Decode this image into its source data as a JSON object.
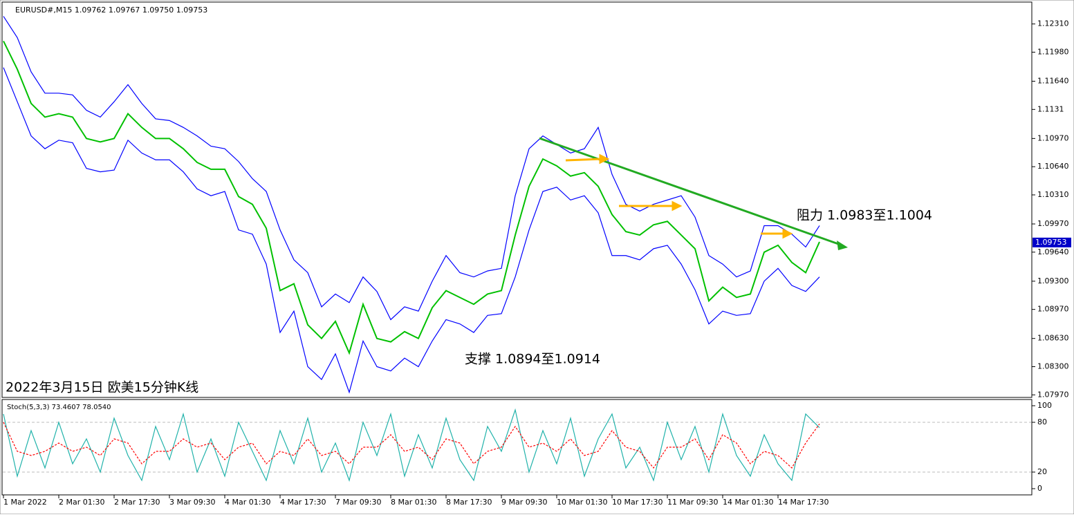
{
  "chart_data": [
    {
      "type": "line",
      "title": "EURUSD#,M15  1.09762 1.09767 1.09750 1.09753",
      "caption": "2022年3月15日 欧美15分钟K线",
      "annotations": [
        "阻力 1.0983至1.1004",
        "支撑 1.0894至1.0914"
      ],
      "last_price": 1.09753,
      "categories": [
        "1 Mar 2022",
        null,
        null,
        null,
        "2 Mar 01:30",
        null,
        null,
        null,
        "2 Mar 17:30",
        null,
        null,
        null,
        "3 Mar 09:30",
        null,
        null,
        null,
        "4 Mar 01:30",
        null,
        null,
        null,
        "4 Mar 17:30",
        null,
        null,
        null,
        "7 Mar 09:30",
        null,
        null,
        null,
        "8 Mar 01:30",
        null,
        null,
        null,
        "8 Mar 17:30",
        null,
        null,
        null,
        "9 Mar 09:30",
        null,
        null,
        null,
        "10 Mar 01:30",
        null,
        null,
        null,
        "10 Mar 17:30",
        null,
        null,
        null,
        "11 Mar 09:30",
        null,
        null,
        null,
        "14 Mar 01:30",
        null,
        null,
        null,
        "14 Mar 17:30",
        null,
        null,
        null
      ],
      "series": [
        {
          "color": "#00c000",
          "values": [
            1.1211,
            1.1178,
            1.1138,
            1.1122,
            1.1126,
            1.1122,
            1.1097,
            1.1093,
            1.1097,
            1.1126,
            1.111,
            1.1097,
            1.1097,
            1.1085,
            1.1069,
            1.1061,
            1.1061,
            1.1029,
            1.102,
            1.0992,
            1.0919,
            1.0927,
            1.0879,
            1.0863,
            1.0883,
            1.0846,
            1.0903,
            1.0863,
            1.0859,
            1.0871,
            1.0863,
            1.0899,
            1.0919,
            1.0911,
            1.0903,
            1.0915,
            1.0919,
            1.0984,
            1.1041,
            1.1073,
            1.1065,
            1.1053,
            1.1057,
            1.1041,
            1.1008,
            1.0988,
            1.0984,
            1.0996,
            1.1,
            1.0984,
            1.0968,
            1.0907,
            1.0923,
            1.0911,
            1.0915,
            1.0964,
            1.0972,
            1.0952,
            1.094,
            1.0976
          ]
        },
        {
          "color": "#0000ff",
          "values": [
            1.124,
            1.1215,
            1.1175,
            1.115,
            1.115,
            1.1148,
            1.113,
            1.1122,
            1.114,
            1.116,
            1.1138,
            1.112,
            1.1118,
            1.111,
            1.11,
            1.1088,
            1.1085,
            1.107,
            1.105,
            1.1035,
            1.099,
            1.0955,
            1.094,
            1.09,
            1.0915,
            1.0905,
            1.0935,
            1.0918,
            1.0885,
            1.09,
            1.0895,
            1.093,
            1.096,
            1.094,
            1.0935,
            1.0942,
            1.0945,
            1.103,
            1.1085,
            1.11,
            1.109,
            1.108,
            1.1085,
            1.111,
            1.1055,
            1.102,
            1.1012,
            1.102,
            1.1025,
            1.103,
            1.1005,
            1.096,
            1.095,
            1.0935,
            1.0942,
            1.0995,
            1.0995,
            1.0985,
            1.097,
            1.0995
          ]
        },
        {
          "color": "#0000ff",
          "values": [
            1.118,
            1.114,
            1.11,
            1.1085,
            1.1095,
            1.1092,
            1.1062,
            1.1058,
            1.106,
            1.1095,
            1.108,
            1.1072,
            1.1072,
            1.1058,
            1.1038,
            1.103,
            1.1035,
            1.099,
            1.0985,
            1.095,
            1.087,
            1.0895,
            1.083,
            1.0815,
            1.0845,
            1.08,
            1.086,
            1.083,
            1.0825,
            1.084,
            1.083,
            1.086,
            1.0885,
            1.088,
            1.087,
            1.089,
            1.0892,
            1.0935,
            1.099,
            1.1035,
            1.104,
            1.1025,
            1.103,
            1.101,
            1.096,
            1.096,
            1.0955,
            1.0968,
            1.0972,
            1.095,
            1.092,
            1.088,
            1.0895,
            1.089,
            1.0892,
            1.093,
            1.0945,
            1.0925,
            1.0918,
            1.0935
          ]
        }
      ],
      "ylim": [
        1.0794,
        1.1255
      ],
      "yticks": [
        {
          "value": 1.1231,
          "label": "1.12310"
        },
        {
          "value": 1.1198,
          "label": "1.11980"
        },
        {
          "value": 1.1164,
          "label": "1.11640"
        },
        1.1131,
        {
          "value": 1.1097,
          "label": "1.10970"
        },
        {
          "value": 1.1064,
          "label": "1.10640"
        },
        {
          "value": 1.1031,
          "label": "1.10310"
        },
        {
          "value": 1.0997,
          "label": "1.09970"
        },
        {
          "value": 1.0964,
          "label": "1.09640"
        },
        {
          "value": 1.093,
          "label": "1.09300"
        },
        {
          "value": 1.0897,
          "label": "1.08970"
        },
        {
          "value": 1.0863,
          "label": "1.08630"
        },
        {
          "value": 1.083,
          "label": "1.08300"
        },
        {
          "value": 1.0797,
          "label": "1.07970"
        }
      ]
    },
    {
      "type": "line",
      "title": "Stoch(5,3,3) 73.4607 78.0540",
      "series": [
        {
          "color": "#20b2aa",
          "values": [
            90,
            15,
            70,
            25,
            80,
            30,
            60,
            20,
            85,
            40,
            10,
            75,
            35,
            90,
            20,
            60,
            15,
            80,
            45,
            10,
            70,
            30,
            85,
            20,
            55,
            10,
            80,
            40,
            90,
            15,
            65,
            25,
            85,
            35,
            10,
            75,
            45,
            95,
            20,
            70,
            30,
            85,
            15,
            60,
            90,
            25,
            50,
            10,
            80,
            35,
            75,
            20,
            90,
            40,
            15,
            65,
            30,
            10,
            90,
            73.4607
          ]
        },
        {
          "color": "#ff0000",
          "dashed": true,
          "values": [
            80,
            45,
            40,
            45,
            55,
            45,
            50,
            40,
            60,
            55,
            30,
            45,
            45,
            60,
            50,
            55,
            35,
            50,
            55,
            30,
            45,
            40,
            60,
            40,
            45,
            30,
            50,
            50,
            65,
            45,
            50,
            35,
            60,
            55,
            30,
            45,
            50,
            75,
            50,
            55,
            45,
            60,
            40,
            45,
            70,
            50,
            45,
            25,
            50,
            50,
            60,
            35,
            65,
            55,
            30,
            45,
            40,
            25,
            55,
            78.054
          ]
        }
      ],
      "ylim": [
        -7.5,
        107.5
      ],
      "yticks": [
        0,
        20,
        80,
        100
      ],
      "grid_ticks": [
        20,
        80
      ]
    }
  ]
}
